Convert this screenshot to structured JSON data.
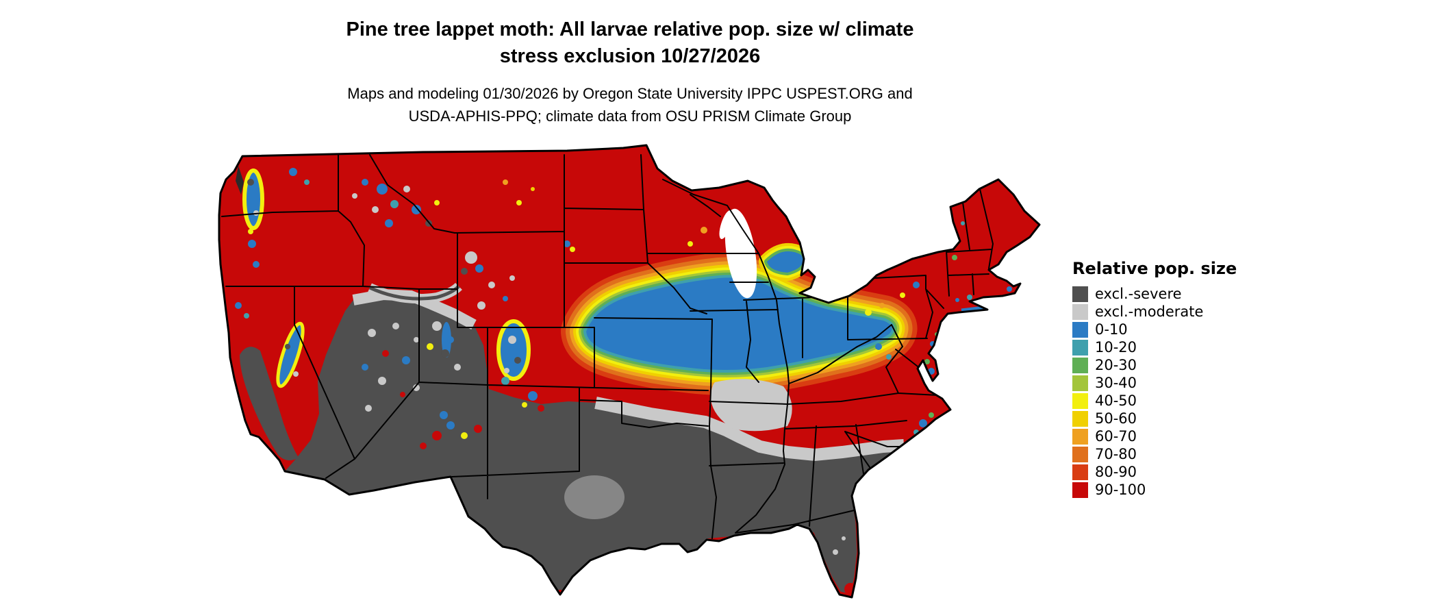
{
  "title": {
    "line1": "Pine tree lappet moth: All larvae relative pop. size w/ climate",
    "line2": "stress exclusion 10/27/2026"
  },
  "subtitle": {
    "line1": "Maps and modeling 01/30/2026 by Oregon State University IPPC USPEST.ORG and",
    "line2": "USDA-APHIS-PPQ; climate data from OSU PRISM Climate Group"
  },
  "legend": {
    "title": "Relative pop. size",
    "items": [
      {
        "label": "excl.-severe",
        "color": "#4f4f4f"
      },
      {
        "label": "excl.-moderate",
        "color": "#c9c9c9"
      },
      {
        "label": "0-10",
        "color": "#2b7bc4"
      },
      {
        "label": "10-20",
        "color": "#3fa0ad"
      },
      {
        "label": "20-30",
        "color": "#5faf55"
      },
      {
        "label": "30-40",
        "color": "#a3c53a"
      },
      {
        "label": "40-50",
        "color": "#f2ef0f"
      },
      {
        "label": "50-60",
        "color": "#f0d000"
      },
      {
        "label": "60-70",
        "color": "#efa020"
      },
      {
        "label": "70-80",
        "color": "#e0701c"
      },
      {
        "label": "80-90",
        "color": "#d93d12"
      },
      {
        "label": "90-100",
        "color": "#c70808"
      }
    ]
  },
  "map": {
    "area": "Contiguous United States (lower 48 states) with state boundaries",
    "regions_summary": [
      {
        "region": "Pacific Northwest, N Rockies, N Plains, Upper Midwest, Northeast",
        "dominant": "90-100"
      },
      {
        "region": "Great Basin / Southwest deserts (NV, UT, AZ, NM, W TX)",
        "dominant": "excl.-severe with excl.-moderate and 0-10 mountain mottling"
      },
      {
        "region": "Texas, Gulf Coast states, Florida, S Atlantic coastal plain",
        "dominant": "excl.-severe with excl.-moderate mottling and red coastal fringe"
      },
      {
        "region": "Central Plains and Corn Belt (NE, KS, IA, MO, IL, IN, OH into PA)",
        "dominant": "0-10 core with 10-80 transition bands"
      },
      {
        "region": "S Missouri / N Arkansas / S Kansas band",
        "dominant": "excl.-moderate"
      },
      {
        "region": "KY, TN, mid-Atlantic interior, New England",
        "dominant": "90-100 with scattered 0-30 patches"
      }
    ]
  }
}
